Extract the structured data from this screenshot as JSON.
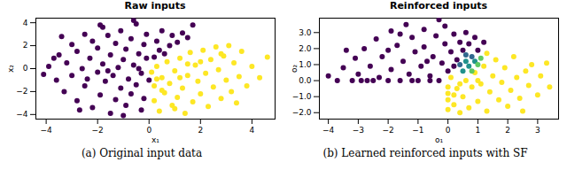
{
  "chart_data": [
    {
      "type": "scatter",
      "title": "Raw inputs",
      "caption": "(a) Original input data",
      "x_label": "x₁",
      "y_label": "x₂",
      "xlim": [
        -4.4,
        4.9
      ],
      "xticks": [
        -4,
        -2,
        0,
        2,
        4
      ],
      "ylim": [
        -4.4,
        4.4
      ],
      "yticks": [
        -4,
        -2,
        0,
        2,
        4
      ],
      "grid": false,
      "series": [
        {
          "color": "#440154",
          "points": [
            [
              -3.9,
              0.2
            ],
            [
              -3.6,
              -1.0
            ],
            [
              -3.5,
              1.2
            ],
            [
              -3.3,
              -2.0
            ],
            [
              -3.2,
              0.5
            ],
            [
              -3.0,
              2.1
            ],
            [
              -3.0,
              -0.6
            ],
            [
              -2.8,
              -2.8
            ],
            [
              -2.8,
              1.5
            ],
            [
              -2.6,
              0.0
            ],
            [
              -2.5,
              3.0
            ],
            [
              -2.5,
              -1.5
            ],
            [
              -2.3,
              0.9
            ],
            [
              -2.2,
              -3.4
            ],
            [
              -2.2,
              2.4
            ],
            [
              -2.0,
              -0.3
            ],
            [
              -2.0,
              1.8
            ],
            [
              -1.9,
              -2.3
            ],
            [
              -1.8,
              3.6
            ],
            [
              -1.8,
              0.4
            ],
            [
              -1.7,
              -1.1
            ],
            [
              -1.6,
              2.9
            ],
            [
              -1.5,
              -3.9
            ],
            [
              -1.5,
              1.2
            ],
            [
              -1.4,
              -0.6
            ],
            [
              -1.3,
              -2.7
            ],
            [
              -1.3,
              2.2
            ],
            [
              -1.2,
              0.1
            ],
            [
              -1.1,
              3.3
            ],
            [
              -1.1,
              -1.7
            ],
            [
              -1.0,
              0.8
            ],
            [
              -0.9,
              -3.2
            ],
            [
              -0.9,
              1.7
            ],
            [
              -0.8,
              -0.9
            ],
            [
              -0.7,
              2.6
            ],
            [
              -0.7,
              -2.2
            ],
            [
              -0.6,
              0.3
            ],
            [
              -0.5,
              3.9
            ],
            [
              -0.5,
              -1.4
            ],
            [
              -0.4,
              1.3
            ],
            [
              -0.3,
              -3.6
            ],
            [
              -0.3,
              -0.4
            ],
            [
              -0.2,
              2.1
            ],
            [
              -0.2,
              -2.6
            ],
            [
              -0.1,
              0.9
            ],
            [
              -0.1,
              3.0
            ],
            [
              0.0,
              -1.0
            ],
            [
              0.2,
              1.0
            ],
            [
              0.3,
              2.4
            ],
            [
              0.4,
              1.6
            ],
            [
              0.5,
              3.3
            ],
            [
              0.6,
              1.3
            ],
            [
              0.8,
              2.0
            ],
            [
              0.9,
              2.9
            ],
            [
              1.1,
              2.3
            ],
            [
              1.3,
              3.1
            ],
            [
              1.5,
              2.7
            ],
            [
              1.7,
              3.8
            ],
            [
              -3.4,
              2.8
            ],
            [
              -2.7,
              -3.6
            ],
            [
              -1.0,
              -4.1
            ],
            [
              -4.1,
              -0.5
            ],
            [
              -0.6,
              4.2
            ],
            [
              -1.6,
              -0.2
            ],
            [
              -2.4,
              -0.9
            ],
            [
              -0.4,
              0.0
            ],
            [
              -1.9,
              3.8
            ],
            [
              -3.7,
              0.9
            ]
          ]
        },
        {
          "color": "#fde725",
          "points": [
            [
              0.1,
              -0.3
            ],
            [
              0.2,
              -1.5
            ],
            [
              0.2,
              -2.8
            ],
            [
              0.3,
              0.2
            ],
            [
              0.4,
              -3.7
            ],
            [
              0.5,
              -0.8
            ],
            [
              0.6,
              -2.1
            ],
            [
              0.7,
              0.6
            ],
            [
              0.8,
              -1.3
            ],
            [
              0.9,
              -3.2
            ],
            [
              1.0,
              -0.2
            ],
            [
              1.1,
              -2.5
            ],
            [
              1.2,
              0.9
            ],
            [
              1.3,
              -1.7
            ],
            [
              1.4,
              -3.9
            ],
            [
              1.5,
              -0.6
            ],
            [
              1.6,
              1.4
            ],
            [
              1.7,
              -2.9
            ],
            [
              1.8,
              0.3
            ],
            [
              1.9,
              -1.1
            ],
            [
              2.0,
              -2.2
            ],
            [
              2.1,
              1.6
            ],
            [
              2.2,
              -0.4
            ],
            [
              2.3,
              -3.3
            ],
            [
              2.4,
              0.8
            ],
            [
              2.5,
              -1.6
            ],
            [
              2.6,
              1.9
            ],
            [
              2.7,
              -0.1
            ],
            [
              2.8,
              -2.6
            ],
            [
              2.9,
              1.1
            ],
            [
              3.0,
              -1.0
            ],
            [
              3.1,
              2.0
            ],
            [
              3.2,
              -2.0
            ],
            [
              3.3,
              0.5
            ],
            [
              3.5,
              -0.7
            ],
            [
              3.6,
              1.5
            ],
            [
              3.8,
              -1.5
            ],
            [
              4.0,
              0.2
            ],
            [
              4.3,
              -0.8
            ],
            [
              4.6,
              1.0
            ],
            [
              0.5,
              -1.9
            ],
            [
              1.0,
              -3.5
            ],
            [
              1.5,
              0.4
            ],
            [
              2.0,
              0.6
            ],
            [
              0.3,
              -0.9
            ],
            [
              1.2,
              -0.8
            ],
            [
              2.8,
              1.3
            ],
            [
              3.4,
              -3.0
            ]
          ]
        }
      ]
    },
    {
      "type": "scatter",
      "title": "Reinforced inputs",
      "caption": "(b) Learned reinforced inputs with SF",
      "x_label": "o₁",
      "y_label": "o₂",
      "xlim": [
        -4.3,
        3.7
      ],
      "xticks": [
        -4,
        -3,
        -2,
        -1,
        0,
        1,
        2,
        3
      ],
      "ylim": [
        -2.4,
        3.9
      ],
      "yticks": [
        -2,
        -1,
        0,
        1,
        2,
        3
      ],
      "grid": false,
      "series": [
        {
          "color": "#440154",
          "points": [
            [
              -4.0,
              0.3
            ],
            [
              -3.7,
              0.0
            ],
            [
              -3.5,
              0.8
            ],
            [
              -3.2,
              0.0
            ],
            [
              -3.1,
              1.4
            ],
            [
              -3.0,
              0.4
            ],
            [
              -2.8,
              2.0
            ],
            [
              -2.7,
              0.0
            ],
            [
              -2.6,
              0.9
            ],
            [
              -2.4,
              2.6
            ],
            [
              -2.3,
              0.2
            ],
            [
              -2.2,
              1.5
            ],
            [
              -2.0,
              0.0
            ],
            [
              -1.9,
              3.1
            ],
            [
              -1.9,
              0.7
            ],
            [
              -1.7,
              2.2
            ],
            [
              -1.6,
              0.0
            ],
            [
              -1.5,
              1.2
            ],
            [
              -1.4,
              3.5
            ],
            [
              -1.3,
              0.4
            ],
            [
              -1.2,
              2.7
            ],
            [
              -1.1,
              1.8
            ],
            [
              -1.0,
              0.0
            ],
            [
              -0.9,
              0.9
            ],
            [
              -0.8,
              3.2
            ],
            [
              -0.8,
              2.1
            ],
            [
              -0.6,
              0.3
            ],
            [
              -0.5,
              1.5
            ],
            [
              -0.4,
              2.8
            ],
            [
              -0.3,
              0.0
            ],
            [
              -0.2,
              1.1
            ],
            [
              -0.1,
              3.4
            ],
            [
              -0.1,
              2.3
            ],
            [
              0.0,
              0.6
            ],
            [
              0.1,
              1.8
            ],
            [
              0.2,
              2.9
            ],
            [
              0.3,
              1.3
            ],
            [
              0.4,
              2.4
            ],
            [
              0.5,
              1.9
            ],
            [
              0.6,
              3.0
            ],
            [
              0.7,
              2.3
            ],
            [
              0.9,
              2.7
            ],
            [
              1.0,
              1.9
            ],
            [
              -2.5,
              0.0
            ],
            [
              -1.2,
              0.0
            ],
            [
              -0.6,
              0.0
            ],
            [
              -3.4,
              1.9
            ],
            [
              -2.0,
              1.9
            ],
            [
              -0.3,
              3.8
            ],
            [
              -1.6,
              2.9
            ],
            [
              -0.7,
              1.2
            ],
            [
              -2.9,
              0.0
            ],
            [
              0.2,
              0.9
            ],
            [
              1.2,
              2.4
            ]
          ]
        },
        {
          "color": "#fde725",
          "points": [
            [
              0.0,
              -0.4
            ],
            [
              0.0,
              -1.2
            ],
            [
              0.0,
              -1.8
            ],
            [
              0.0,
              -0.8
            ],
            [
              0.1,
              0.2
            ],
            [
              0.2,
              -1.5
            ],
            [
              0.3,
              -0.5
            ],
            [
              0.4,
              -2.0
            ],
            [
              0.5,
              -1.0
            ],
            [
              0.6,
              0.0
            ],
            [
              0.7,
              -1.7
            ],
            [
              0.8,
              -0.4
            ],
            [
              0.9,
              0.5
            ],
            [
              1.0,
              -1.3
            ],
            [
              1.1,
              -0.2
            ],
            [
              1.2,
              0.9
            ],
            [
              1.3,
              -1.9
            ],
            [
              1.4,
              -0.7
            ],
            [
              1.5,
              0.3
            ],
            [
              1.6,
              1.3
            ],
            [
              1.7,
              -1.2
            ],
            [
              1.8,
              -0.1
            ],
            [
              1.9,
              0.8
            ],
            [
              2.0,
              -1.6
            ],
            [
              2.1,
              -0.6
            ],
            [
              2.2,
              1.5
            ],
            [
              2.3,
              0.2
            ],
            [
              2.4,
              -1.1
            ],
            [
              2.6,
              0.6
            ],
            [
              2.7,
              -0.3
            ],
            [
              2.8,
              1.0
            ],
            [
              3.0,
              -0.9
            ],
            [
              3.1,
              0.3
            ],
            [
              3.3,
              1.1
            ],
            [
              3.4,
              -0.4
            ],
            [
              1.3,
              1.7
            ],
            [
              0.4,
              -0.2
            ],
            [
              2.5,
              -1.9
            ],
            [
              1.0,
              0.0
            ],
            [
              0.2,
              -0.9
            ]
          ]
        },
        {
          "color": "#31688e",
          "points": [
            [
              0.4,
              1.0
            ],
            [
              0.6,
              1.6
            ],
            [
              0.8,
              1.5
            ]
          ]
        },
        {
          "color": "#21918c",
          "points": [
            [
              0.5,
              0.6
            ],
            [
              0.7,
              0.9
            ],
            [
              0.9,
              1.2
            ],
            [
              0.6,
              1.2
            ]
          ]
        },
        {
          "color": "#5ec962",
          "points": [
            [
              0.8,
              0.6
            ],
            [
              1.0,
              1.0
            ],
            [
              1.1,
              1.4
            ]
          ]
        }
      ]
    }
  ]
}
